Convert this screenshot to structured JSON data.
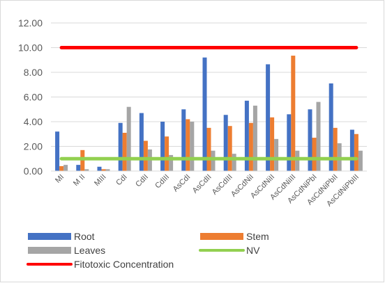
{
  "chart_data": {
    "type": "bar",
    "title": "",
    "xlabel": "",
    "ylabel": "",
    "ylim": [
      0,
      12
    ],
    "yticks": [
      "0.00",
      "2.00",
      "4.00",
      "6.00",
      "8.00",
      "10.00",
      "12.00"
    ],
    "categories": [
      "MI",
      "M II",
      "MIII",
      "CdI",
      "CdII",
      "CdIII",
      "AsCdI",
      "AsCdII",
      "AsCdIII",
      "AsCdNiI",
      "AsCdNiII",
      "AsCdNiIII",
      "AsCdNiPbI",
      "AsCdNiPbII",
      "AsCdNiPbIII"
    ],
    "series": [
      {
        "name": "Root",
        "color": "#4472c4",
        "values": [
          3.2,
          0.5,
          0.35,
          3.9,
          4.7,
          4.0,
          5.0,
          9.2,
          4.55,
          5.7,
          8.65,
          4.6,
          5.0,
          7.1,
          3.35
        ]
      },
      {
        "name": "Stem",
        "color": "#ed7d31",
        "values": [
          0.4,
          1.7,
          0.15,
          3.1,
          2.45,
          2.8,
          4.2,
          3.5,
          3.65,
          3.9,
          4.35,
          9.35,
          2.7,
          3.5,
          3.0
        ]
      },
      {
        "name": "Leaves",
        "color": "#a5a5a5",
        "values": [
          0.5,
          0.15,
          0.15,
          5.2,
          1.75,
          1.3,
          4.0,
          1.65,
          1.4,
          5.3,
          2.6,
          1.65,
          5.6,
          2.25,
          1.65
        ]
      }
    ],
    "lines": [
      {
        "name": "NV",
        "color": "#92d050",
        "value": 1.0
      },
      {
        "name": "Fitotoxic Concentration",
        "color": "#ff0000",
        "value": 10.0
      }
    ],
    "grid": true,
    "legend_position": "bottom"
  }
}
